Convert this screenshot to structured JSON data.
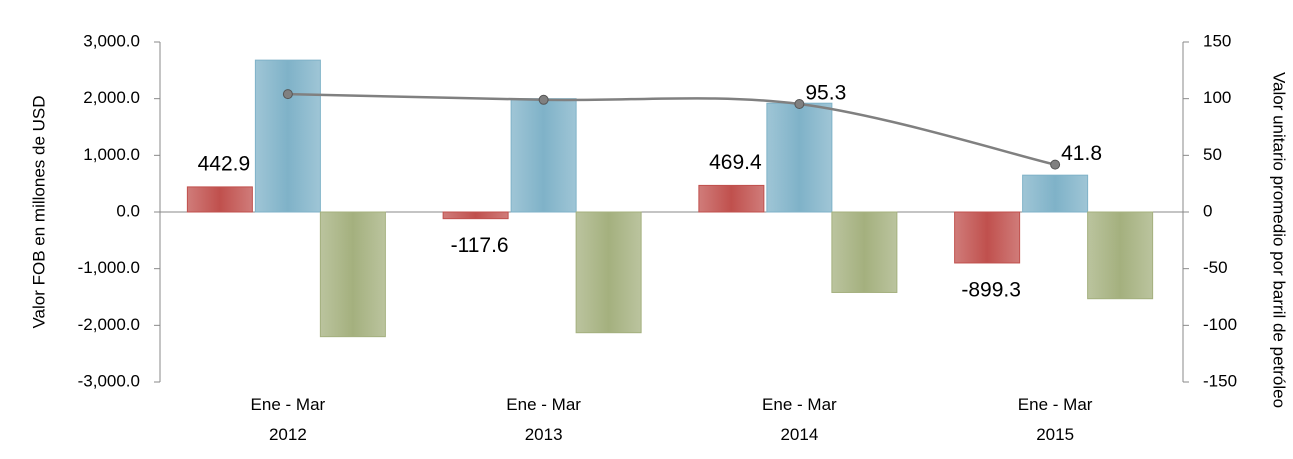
{
  "chart_data": {
    "type": "bar",
    "categories": [
      "Ene - Mar\n2012",
      "Ene - Mar\n2013",
      "Ene - Mar\n2014",
      "Ene - Mar\n2015"
    ],
    "ylabel": "Valor FOB en millones de USD",
    "y2label": "Valor unitario promedio por barril de petróleo",
    "ylim": [
      -3000,
      3000
    ],
    "yticks": [
      {
        "value": -3000,
        "label": "-3,000.0"
      },
      {
        "value": -2000,
        "label": "-2,000.0"
      },
      {
        "value": -1000,
        "label": "-1,000.0"
      },
      {
        "value": 0,
        "label": "0.0"
      },
      {
        "value": 1000,
        "label": "1,000.0"
      },
      {
        "value": 2000,
        "label": "2,000.0"
      },
      {
        "value": 3000,
        "label": "3,000.0"
      }
    ],
    "y2lim": [
      -150,
      150
    ],
    "y2ticks": [
      -150,
      -100,
      -50,
      0,
      50,
      100,
      150
    ],
    "series": [
      {
        "type": "bar",
        "color": "#c0504d",
        "values": [
          442.9,
          -117.6,
          469.4,
          -899.3
        ],
        "value_labels": [
          "442.9",
          "-117.6",
          "469.4",
          "-899.3"
        ]
      },
      {
        "type": "bar",
        "color": "#7fb2c8",
        "values": [
          2680,
          2000,
          1920,
          650
        ]
      },
      {
        "type": "bar",
        "color": "#a4b07e",
        "values": [
          -2200,
          -2130,
          -1420,
          -1530
        ]
      },
      {
        "type": "line",
        "axis": "y2",
        "color": "#808080",
        "values": [
          104,
          99,
          95.3,
          41.8
        ],
        "value_labels": [
          null,
          null,
          "95.3",
          "41.8"
        ]
      }
    ]
  }
}
